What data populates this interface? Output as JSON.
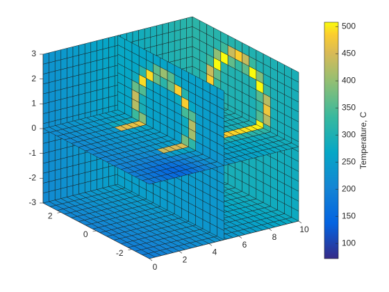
{
  "chart_data": {
    "type": "slice",
    "xlim": [
      0,
      10
    ],
    "xticks": [
      0,
      2,
      4,
      6,
      8,
      10
    ],
    "ylim": [
      -3,
      3
    ],
    "yticks": [
      -2,
      0,
      2
    ],
    "zlim": [
      -3,
      3
    ],
    "zticks": [
      -3,
      -2,
      -1,
      0,
      1,
      2,
      3
    ],
    "colorbar": {
      "label": "Temperature, C",
      "clim": [
        72,
        508
      ],
      "ticks": [
        100,
        150,
        200,
        250,
        300,
        350,
        400,
        450,
        500
      ],
      "colormap": "parula"
    }
  }
}
